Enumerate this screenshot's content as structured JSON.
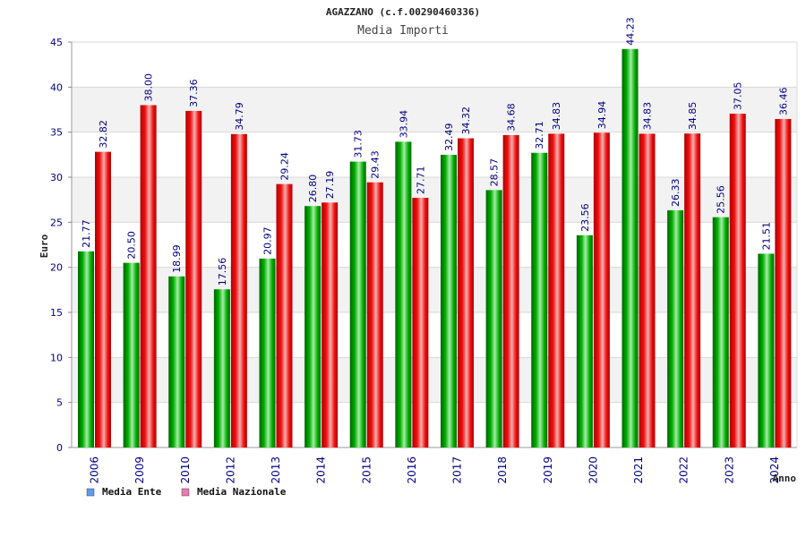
{
  "chart_data": {
    "type": "bar",
    "title": "AGAZZANO (c.f.00290460336)",
    "subtitle": "Media Importi",
    "xlabel": "Anno",
    "ylabel": "Euro",
    "ylim": [
      0,
      45
    ],
    "yticks": [
      "0",
      "5",
      "10",
      "15",
      "20",
      "25",
      "30",
      "35",
      "40",
      "45"
    ],
    "grid": true,
    "legend_position": "bottom-left",
    "categories": [
      "2006",
      "2009",
      "2010",
      "2012",
      "2013",
      "2014",
      "2015",
      "2016",
      "2017",
      "2018",
      "2019",
      "2020",
      "2021",
      "2022",
      "2023",
      "2024"
    ],
    "series": [
      {
        "name": "Media Ente",
        "color": "#00a000",
        "legend_color": "#5b9bf0",
        "values": [
          21.77,
          20.5,
          18.99,
          17.56,
          20.97,
          26.8,
          31.73,
          33.94,
          32.49,
          28.57,
          32.71,
          23.56,
          44.23,
          26.33,
          25.56,
          21.51
        ],
        "labels": [
          "21.77",
          "20.50",
          "18.99",
          "17.56",
          "20.97",
          "26.80",
          "31.73",
          "33.94",
          "32.49",
          "28.57",
          "32.71",
          "23.56",
          "44.23",
          "26.33",
          "25.56",
          "21.51"
        ]
      },
      {
        "name": "Media Nazionale",
        "color": "#e00000",
        "legend_color": "#e87ab0",
        "values": [
          32.82,
          38.0,
          37.36,
          34.79,
          29.24,
          27.19,
          29.43,
          27.71,
          34.32,
          34.68,
          34.83,
          34.94,
          34.83,
          34.85,
          37.05,
          36.46
        ],
        "labels": [
          "32.82",
          "38.00",
          "37.36",
          "34.79",
          "29.24",
          "27.19",
          "29.43",
          "27.71",
          "34.32",
          "34.68",
          "34.83",
          "34.94",
          "34.83",
          "34.85",
          "37.05",
          "36.46"
        ]
      }
    ]
  }
}
